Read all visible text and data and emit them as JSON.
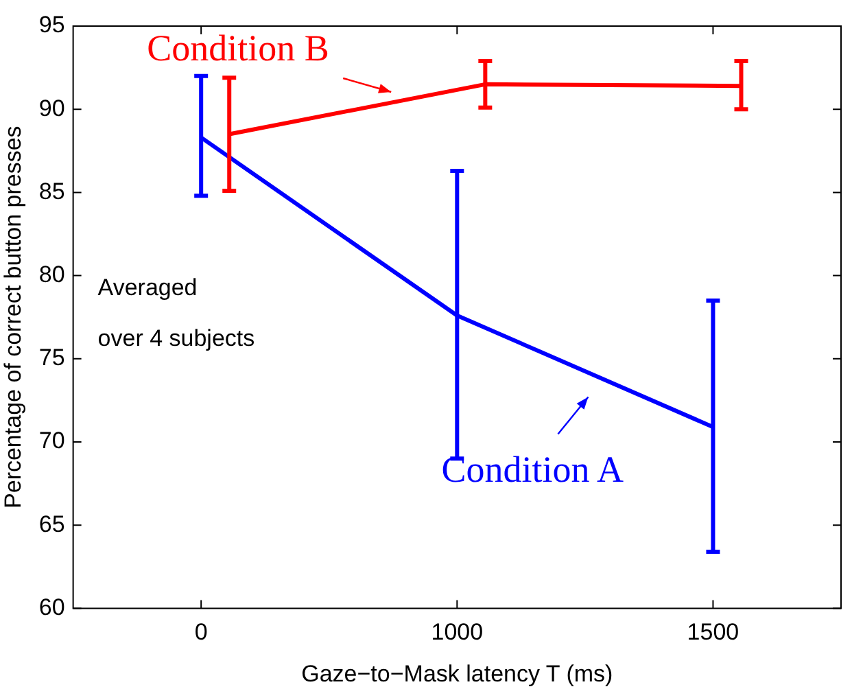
{
  "chart_data": {
    "type": "line",
    "xlabel": "Gaze−to−Mask latency T (ms)",
    "ylabel": "Percentage of correct button presses",
    "categories": [
      "0",
      "1000",
      "1500"
    ],
    "ylim": [
      60,
      95
    ],
    "yticks": [
      60,
      65,
      70,
      75,
      80,
      85,
      90,
      95
    ],
    "grid": false,
    "marker": "none",
    "series": [
      {
        "name": "Condition A",
        "color": "#0000ff",
        "values": [
          88.3,
          77.6,
          70.9
        ],
        "errors": [
          [
            84.8,
            92.0
          ],
          [
            69.0,
            86.3
          ],
          [
            63.4,
            78.5
          ]
        ]
      },
      {
        "name": "Condition B",
        "color": "#ff0000",
        "values": [
          88.5,
          91.5,
          91.4
        ],
        "errors": [
          [
            85.1,
            91.9
          ],
          [
            90.1,
            92.9
          ],
          [
            90.0,
            92.9
          ]
        ]
      }
    ],
    "annotations": [
      "Averaged\nover 4 subjects"
    ]
  }
}
